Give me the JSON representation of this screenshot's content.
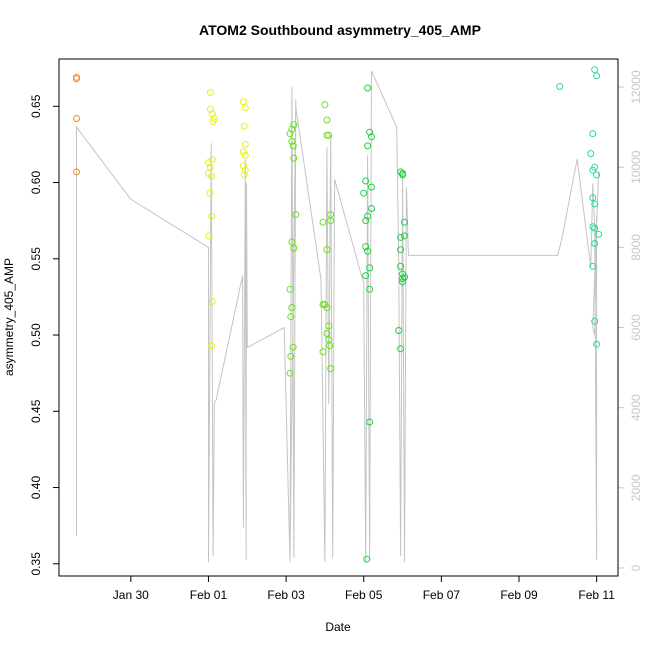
{
  "chart_data": {
    "type": "scatter",
    "title": "ATOM2 Southbound asymmetry_405_AMP",
    "xlabel": "Date",
    "ylabel": "asymmetry_405_AMP",
    "x_tick_labels": [
      "Jan 30",
      "Feb 01",
      "Feb 03",
      "Feb 05",
      "Feb 07",
      "Feb 09",
      "Feb 11"
    ],
    "x_tick_days": [
      30,
      32,
      34,
      36,
      38,
      40,
      42
    ],
    "x_range_days": [
      28.15,
      42.55
    ],
    "x_day_note": "days counted from Jan 0",
    "y_left": {
      "ticks": [
        0.35,
        0.4,
        0.45,
        0.5,
        0.55,
        0.6,
        0.65
      ],
      "tick_labels": [
        "0.35",
        "0.40",
        "0.45",
        "0.50",
        "0.55",
        "0.60",
        "0.65"
      ],
      "range": [
        0.342,
        0.681
      ]
    },
    "y_right": {
      "ticks": [
        0,
        2000,
        4000,
        6000,
        8000,
        10000,
        12000
      ],
      "tick_labels": [
        "0",
        "2000",
        "4000",
        "6000",
        "8000",
        "10000",
        "12000"
      ],
      "range": [
        -200,
        12700
      ],
      "color": "#c8c8c8"
    },
    "point_colors": {
      "orange": "#f28c28",
      "yellow": "#e8ef1a",
      "lime": "#6de01a",
      "green": "#20d040",
      "mint": "#1ee28e"
    },
    "line_color": "#c4c4c4",
    "points": [
      {
        "d": 28.6,
        "y": 0.669,
        "c": "orange"
      },
      {
        "d": 28.6,
        "y": 0.668,
        "c": "orange"
      },
      {
        "d": 28.6,
        "y": 0.642,
        "c": "orange"
      },
      {
        "d": 28.6,
        "y": 0.607,
        "c": "orange"
      },
      {
        "d": 32.05,
        "y": 0.659,
        "c": "yellow"
      },
      {
        "d": 32.05,
        "y": 0.648,
        "c": "yellow"
      },
      {
        "d": 32.1,
        "y": 0.645,
        "c": "yellow"
      },
      {
        "d": 32.15,
        "y": 0.642,
        "c": "yellow"
      },
      {
        "d": 32.12,
        "y": 0.64,
        "c": "yellow"
      },
      {
        "d": 32.0,
        "y": 0.613,
        "c": "yellow"
      },
      {
        "d": 32.1,
        "y": 0.615,
        "c": "yellow"
      },
      {
        "d": 32.05,
        "y": 0.61,
        "c": "yellow"
      },
      {
        "d": 32.0,
        "y": 0.606,
        "c": "yellow"
      },
      {
        "d": 32.08,
        "y": 0.604,
        "c": "yellow"
      },
      {
        "d": 32.04,
        "y": 0.593,
        "c": "yellow"
      },
      {
        "d": 32.08,
        "y": 0.578,
        "c": "yellow"
      },
      {
        "d": 32.02,
        "y": 0.565,
        "c": "yellow"
      },
      {
        "d": 32.1,
        "y": 0.522,
        "c": "yellow"
      },
      {
        "d": 32.08,
        "y": 0.493,
        "c": "yellow"
      },
      {
        "d": 32.9,
        "y": 0.653,
        "c": "yellow"
      },
      {
        "d": 32.95,
        "y": 0.649,
        "c": "yellow"
      },
      {
        "d": 32.92,
        "y": 0.637,
        "c": "yellow"
      },
      {
        "d": 32.95,
        "y": 0.625,
        "c": "yellow"
      },
      {
        "d": 32.9,
        "y": 0.62,
        "c": "yellow"
      },
      {
        "d": 32.95,
        "y": 0.618,
        "c": "yellow"
      },
      {
        "d": 32.9,
        "y": 0.611,
        "c": "yellow"
      },
      {
        "d": 32.95,
        "y": 0.608,
        "c": "yellow"
      },
      {
        "d": 32.92,
        "y": 0.605,
        "c": "yellow"
      },
      {
        "d": 34.2,
        "y": 0.638,
        "c": "lime"
      },
      {
        "d": 34.15,
        "y": 0.635,
        "c": "lime"
      },
      {
        "d": 34.1,
        "y": 0.632,
        "c": "lime"
      },
      {
        "d": 34.15,
        "y": 0.627,
        "c": "lime"
      },
      {
        "d": 34.18,
        "y": 0.624,
        "c": "lime"
      },
      {
        "d": 34.2,
        "y": 0.616,
        "c": "lime"
      },
      {
        "d": 34.25,
        "y": 0.579,
        "c": "lime"
      },
      {
        "d": 34.15,
        "y": 0.561,
        "c": "lime"
      },
      {
        "d": 34.2,
        "y": 0.557,
        "c": "lime"
      },
      {
        "d": 34.1,
        "y": 0.53,
        "c": "lime"
      },
      {
        "d": 34.15,
        "y": 0.518,
        "c": "lime"
      },
      {
        "d": 34.12,
        "y": 0.512,
        "c": "lime"
      },
      {
        "d": 34.18,
        "y": 0.492,
        "c": "lime"
      },
      {
        "d": 34.12,
        "y": 0.486,
        "c": "lime"
      },
      {
        "d": 34.1,
        "y": 0.475,
        "c": "lime"
      },
      {
        "d": 35.0,
        "y": 0.651,
        "c": "lime"
      },
      {
        "d": 35.05,
        "y": 0.641,
        "c": "lime"
      },
      {
        "d": 35.1,
        "y": 0.631,
        "c": "lime"
      },
      {
        "d": 35.05,
        "y": 0.631,
        "c": "lime"
      },
      {
        "d": 35.15,
        "y": 0.579,
        "c": "lime"
      },
      {
        "d": 35.15,
        "y": 0.575,
        "c": "lime"
      },
      {
        "d": 34.95,
        "y": 0.574,
        "c": "lime"
      },
      {
        "d": 35.05,
        "y": 0.556,
        "c": "lime"
      },
      {
        "d": 35.0,
        "y": 0.52,
        "c": "lime"
      },
      {
        "d": 35.05,
        "y": 0.518,
        "c": "lime"
      },
      {
        "d": 34.95,
        "y": 0.52,
        "c": "lime"
      },
      {
        "d": 35.1,
        "y": 0.506,
        "c": "lime"
      },
      {
        "d": 35.05,
        "y": 0.501,
        "c": "lime"
      },
      {
        "d": 35.1,
        "y": 0.497,
        "c": "lime"
      },
      {
        "d": 35.12,
        "y": 0.493,
        "c": "lime"
      },
      {
        "d": 34.95,
        "y": 0.489,
        "c": "lime"
      },
      {
        "d": 35.15,
        "y": 0.478,
        "c": "lime"
      },
      {
        "d": 36.1,
        "y": 0.662,
        "c": "green"
      },
      {
        "d": 36.15,
        "y": 0.633,
        "c": "green"
      },
      {
        "d": 36.2,
        "y": 0.63,
        "c": "green"
      },
      {
        "d": 36.1,
        "y": 0.624,
        "c": "green"
      },
      {
        "d": 36.05,
        "y": 0.601,
        "c": "green"
      },
      {
        "d": 36.2,
        "y": 0.597,
        "c": "green"
      },
      {
        "d": 36.0,
        "y": 0.593,
        "c": "green"
      },
      {
        "d": 36.2,
        "y": 0.583,
        "c": "green"
      },
      {
        "d": 36.1,
        "y": 0.578,
        "c": "green"
      },
      {
        "d": 36.05,
        "y": 0.575,
        "c": "green"
      },
      {
        "d": 36.05,
        "y": 0.558,
        "c": "green"
      },
      {
        "d": 36.1,
        "y": 0.555,
        "c": "green"
      },
      {
        "d": 36.15,
        "y": 0.544,
        "c": "green"
      },
      {
        "d": 36.05,
        "y": 0.539,
        "c": "green"
      },
      {
        "d": 36.15,
        "y": 0.53,
        "c": "green"
      },
      {
        "d": 36.15,
        "y": 0.443,
        "c": "green"
      },
      {
        "d": 36.08,
        "y": 0.353,
        "c": "green"
      },
      {
        "d": 36.95,
        "y": 0.607,
        "c": "green"
      },
      {
        "d": 37.0,
        "y": 0.606,
        "c": "green"
      },
      {
        "d": 37.0,
        "y": 0.605,
        "c": "green"
      },
      {
        "d": 37.05,
        "y": 0.574,
        "c": "green"
      },
      {
        "d": 37.05,
        "y": 0.565,
        "c": "green"
      },
      {
        "d": 36.95,
        "y": 0.564,
        "c": "green"
      },
      {
        "d": 36.95,
        "y": 0.556,
        "c": "green"
      },
      {
        "d": 36.95,
        "y": 0.545,
        "c": "green"
      },
      {
        "d": 37.0,
        "y": 0.54,
        "c": "green"
      },
      {
        "d": 37.05,
        "y": 0.538,
        "c": "green"
      },
      {
        "d": 37.0,
        "y": 0.537,
        "c": "green"
      },
      {
        "d": 37.0,
        "y": 0.535,
        "c": "green"
      },
      {
        "d": 36.9,
        "y": 0.503,
        "c": "green"
      },
      {
        "d": 36.95,
        "y": 0.491,
        "c": "green"
      },
      {
        "d": 41.05,
        "y": 0.663,
        "c": "mint"
      },
      {
        "d": 41.95,
        "y": 0.674,
        "c": "mint"
      },
      {
        "d": 42.0,
        "y": 0.67,
        "c": "mint"
      },
      {
        "d": 41.9,
        "y": 0.632,
        "c": "mint"
      },
      {
        "d": 41.85,
        "y": 0.619,
        "c": "mint"
      },
      {
        "d": 41.95,
        "y": 0.61,
        "c": "mint"
      },
      {
        "d": 41.9,
        "y": 0.608,
        "c": "mint"
      },
      {
        "d": 42.0,
        "y": 0.605,
        "c": "mint"
      },
      {
        "d": 41.9,
        "y": 0.59,
        "c": "mint"
      },
      {
        "d": 41.95,
        "y": 0.586,
        "c": "mint"
      },
      {
        "d": 41.9,
        "y": 0.571,
        "c": "mint"
      },
      {
        "d": 41.95,
        "y": 0.57,
        "c": "mint"
      },
      {
        "d": 42.05,
        "y": 0.566,
        "c": "mint"
      },
      {
        "d": 41.95,
        "y": 0.56,
        "c": "mint"
      },
      {
        "d": 41.9,
        "y": 0.545,
        "c": "mint"
      },
      {
        "d": 41.95,
        "y": 0.509,
        "c": "mint"
      },
      {
        "d": 42.0,
        "y": 0.494,
        "c": "mint"
      }
    ],
    "line_series": {
      "axis": "right",
      "points": [
        [
          28.6,
          800
        ],
        [
          28.6,
          11000
        ],
        [
          30.0,
          9200
        ],
        [
          32.0,
          8000
        ],
        [
          32.0,
          150
        ],
        [
          32.07,
          10600
        ],
        [
          32.12,
          300
        ],
        [
          32.15,
          4100
        ],
        [
          32.2,
          4200
        ],
        [
          32.88,
          7300
        ],
        [
          32.9,
          1000
        ],
        [
          32.95,
          10200
        ],
        [
          32.97,
          200
        ],
        [
          32.98,
          9600
        ],
        [
          33.0,
          5500
        ],
        [
          33.95,
          6000
        ],
        [
          34.1,
          150
        ],
        [
          34.15,
          12000
        ],
        [
          34.2,
          250
        ],
        [
          34.25,
          11700
        ],
        [
          34.1,
          300
        ],
        [
          34.25,
          11500
        ],
        [
          34.9,
          7200
        ],
        [
          35.0,
          150
        ],
        [
          35.05,
          10500
        ],
        [
          35.1,
          4100
        ],
        [
          35.15,
          10800
        ],
        [
          35.2,
          250
        ],
        [
          35.25,
          9700
        ],
        [
          36.0,
          7100
        ],
        [
          36.05,
          150
        ],
        [
          36.1,
          10300
        ],
        [
          36.15,
          200
        ],
        [
          36.2,
          12400
        ],
        [
          36.85,
          11000
        ],
        [
          36.9,
          7700
        ],
        [
          36.95,
          300
        ],
        [
          37.0,
          9800
        ],
        [
          37.05,
          150
        ],
        [
          37.1,
          9500
        ],
        [
          37.12,
          8900
        ],
        [
          37.15,
          7800
        ],
        [
          41.0,
          7800
        ],
        [
          41.1,
          8200
        ],
        [
          41.5,
          10200
        ],
        [
          41.85,
          7500
        ],
        [
          41.9,
          9600
        ],
        [
          41.95,
          8500
        ],
        [
          42.0,
          200
        ],
        [
          42.0,
          8800
        ],
        [
          41.95,
          5800
        ],
        [
          41.9,
          6000
        ],
        [
          42.05,
          9900
        ]
      ]
    }
  }
}
